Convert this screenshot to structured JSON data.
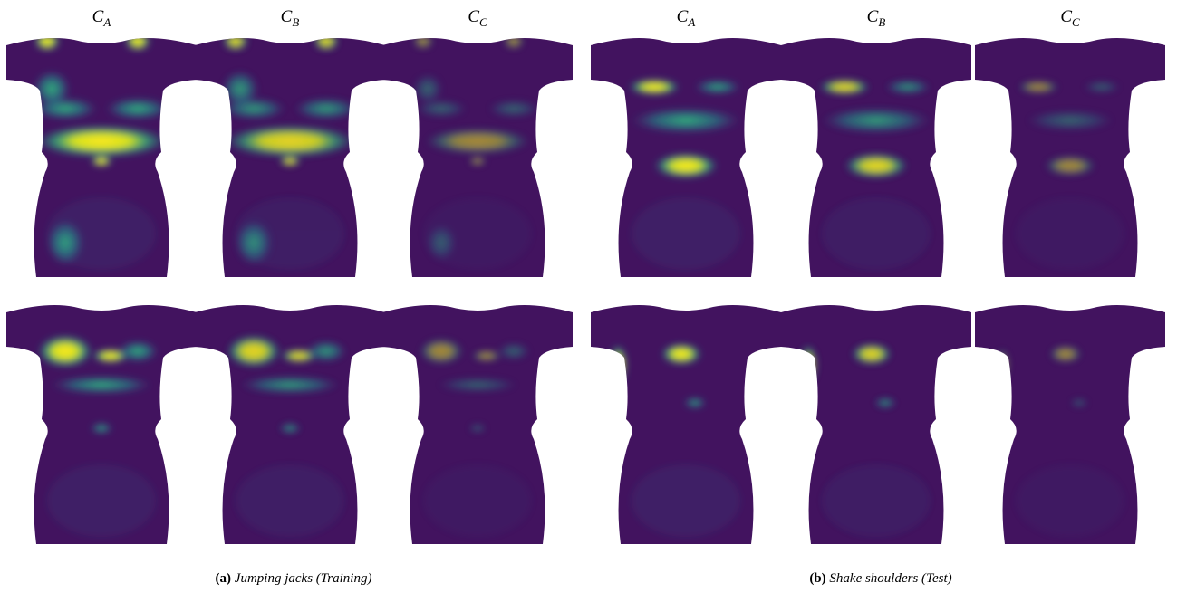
{
  "figure": {
    "panels": [
      {
        "label": "(a)",
        "caption": "Jumping jacks (Training)",
        "columns": [
          {
            "base": "C",
            "sub": "A"
          },
          {
            "base": "C",
            "sub": "B"
          },
          {
            "base": "C",
            "sub": "C"
          }
        ]
      },
      {
        "label": "(b)",
        "caption": "Shake shoulders (Test)",
        "columns": [
          {
            "base": "C",
            "sub": "A"
          },
          {
            "base": "C",
            "sub": "B"
          },
          {
            "base": "C",
            "sub": "C"
          }
        ]
      }
    ]
  }
}
